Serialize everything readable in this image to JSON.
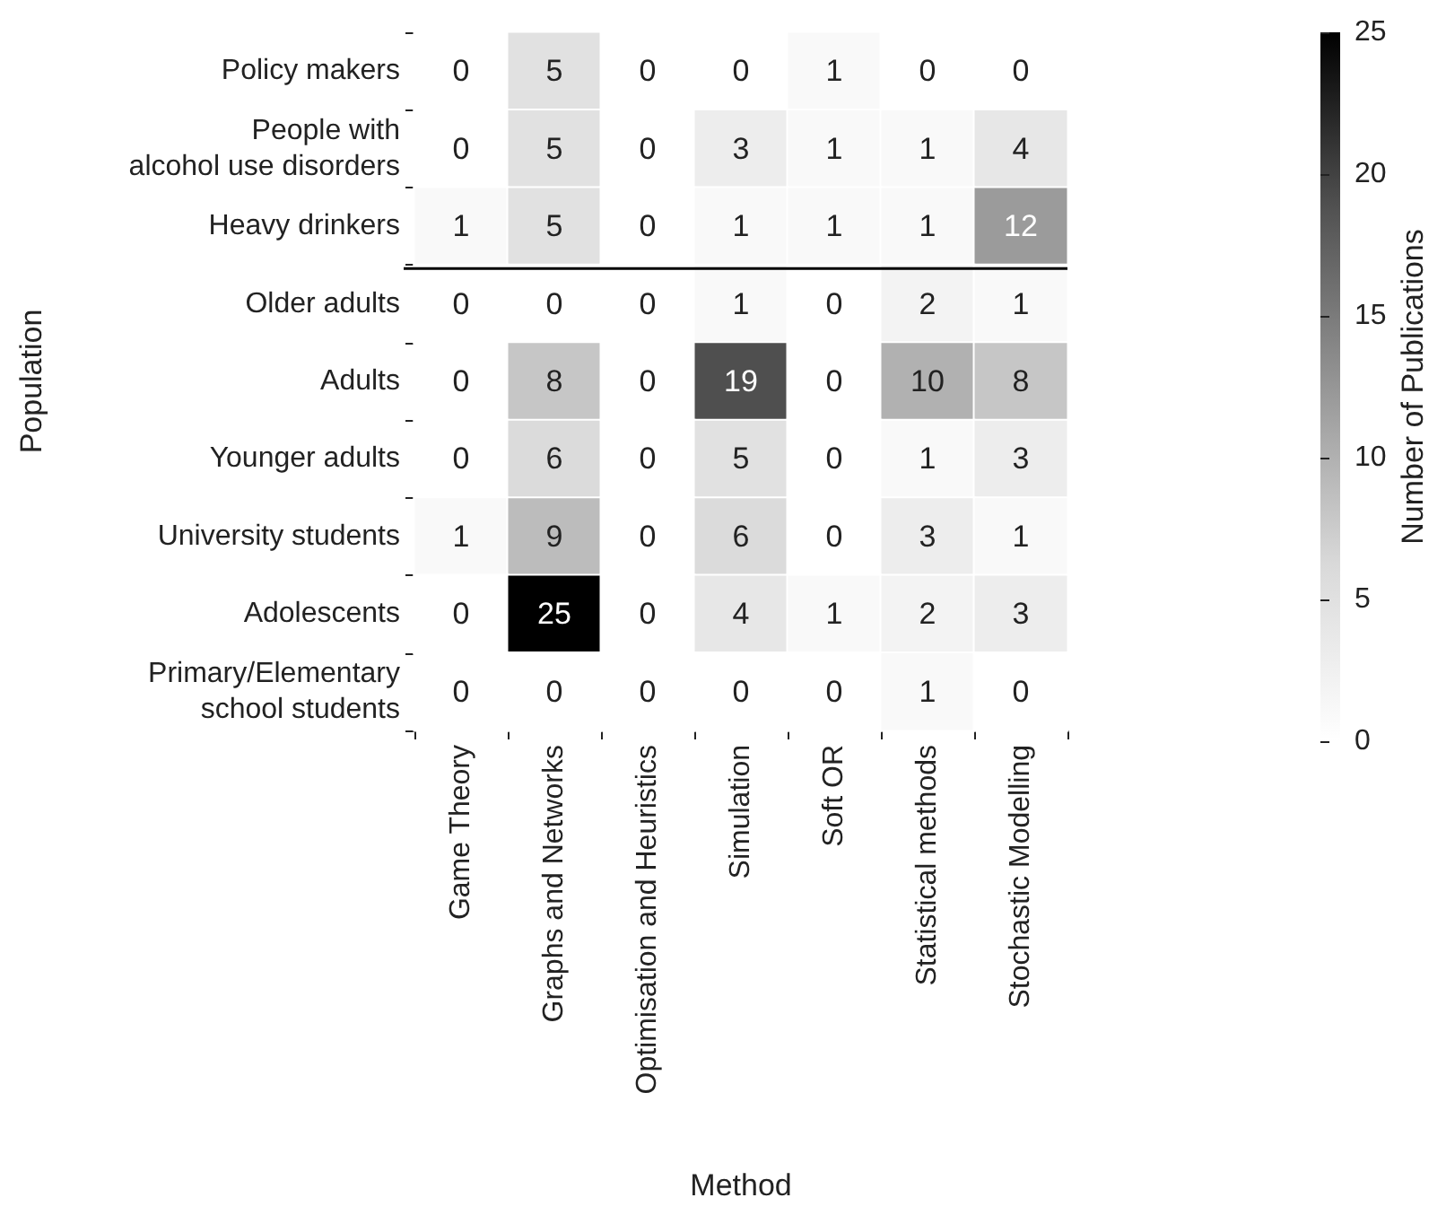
{
  "chart_data": {
    "type": "heatmap",
    "xlabel": "Method",
    "ylabel": "Population",
    "clabel": "Number of Publications",
    "categories": [
      "Game Theory",
      "Graphs and Networks",
      "Optimisation and Heuristics",
      "Simulation",
      "Soft OR",
      "Statistical methods",
      "Stochastic Modelling"
    ],
    "y_categories": [
      "Policy makers",
      "People with\nalcohol use disorders",
      "Heavy drinkers",
      "Older adults",
      "Adults",
      "Younger adults",
      "University students",
      "Adolescents",
      "Primary/Elementary\nschool students"
    ],
    "cells": [
      [
        0,
        5,
        0,
        0,
        1,
        0,
        0
      ],
      [
        0,
        5,
        0,
        3,
        1,
        1,
        4
      ],
      [
        1,
        5,
        0,
        1,
        1,
        1,
        12
      ],
      [
        0,
        0,
        0,
        1,
        0,
        2,
        1
      ],
      [
        0,
        8,
        0,
        19,
        0,
        10,
        8
      ],
      [
        0,
        6,
        0,
        5,
        0,
        1,
        3
      ],
      [
        1,
        9,
        0,
        6,
        0,
        3,
        1
      ],
      [
        0,
        25,
        0,
        4,
        1,
        2,
        3
      ],
      [
        0,
        0,
        0,
        0,
        0,
        1,
        0
      ]
    ],
    "clim": [
      0,
      25
    ],
    "cticks": [
      0,
      5,
      10,
      15,
      20,
      25
    ],
    "data_labels": true
  }
}
